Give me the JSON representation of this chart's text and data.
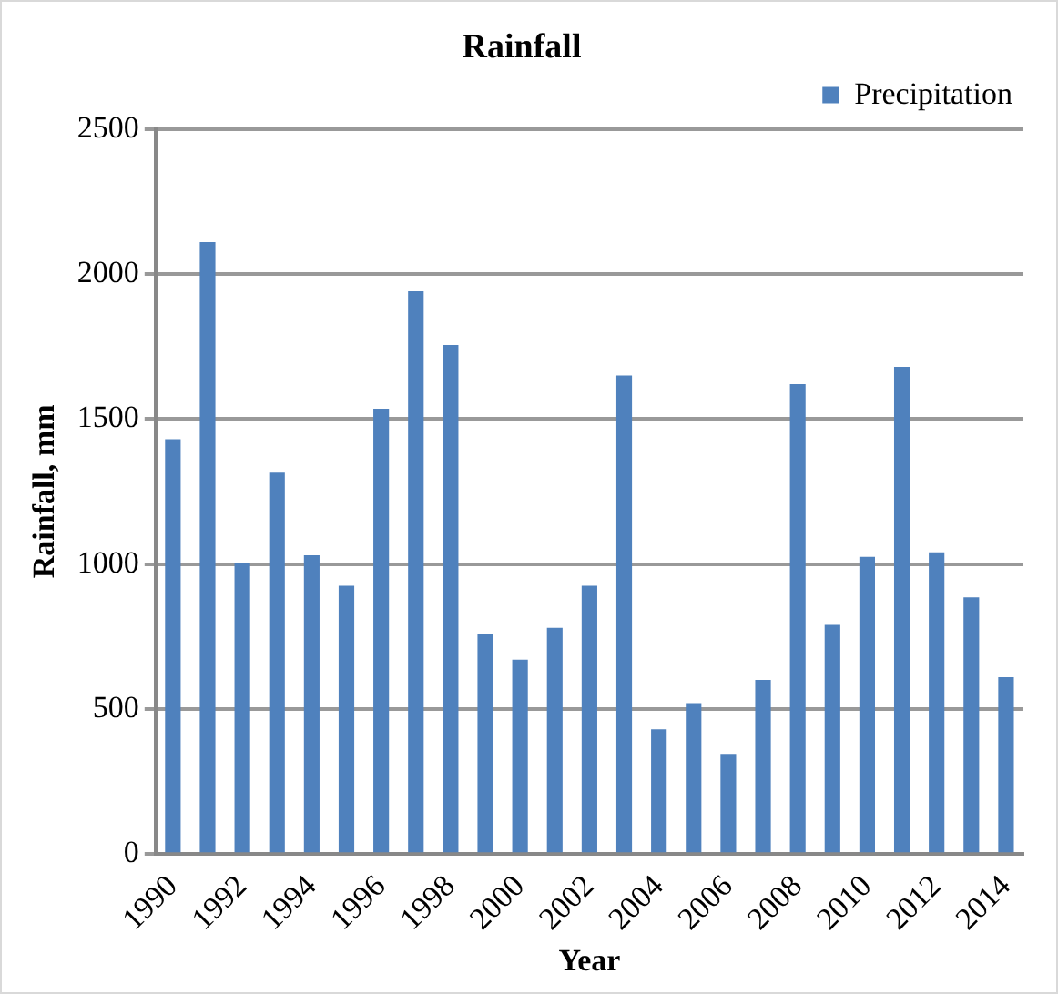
{
  "chart_data": {
    "type": "bar",
    "title": "Rainfall",
    "xlabel": "Year",
    "ylabel": "Rainfall, mm",
    "categories": [
      "1990",
      null,
      "1992",
      null,
      "1994",
      null,
      "1996",
      null,
      "1998",
      null,
      "2000",
      null,
      "2002",
      null,
      "2004",
      null,
      "2006",
      null,
      "2008",
      null,
      "2010",
      null,
      "2012",
      null,
      "2014"
    ],
    "series": [
      {
        "name": "Precipitation",
        "color": "#4f81bd",
        "values": [
          1430,
          2110,
          1005,
          1315,
          1030,
          925,
          1535,
          1940,
          1755,
          760,
          670,
          780,
          925,
          1650,
          430,
          520,
          345,
          600,
          1620,
          790,
          1025,
          1680,
          1040,
          885,
          610
        ]
      }
    ],
    "ylim": [
      0,
      2500
    ],
    "yticks": [
      0,
      500,
      1000,
      1500,
      2000,
      2500
    ],
    "grid": "y",
    "legend": "top right"
  }
}
